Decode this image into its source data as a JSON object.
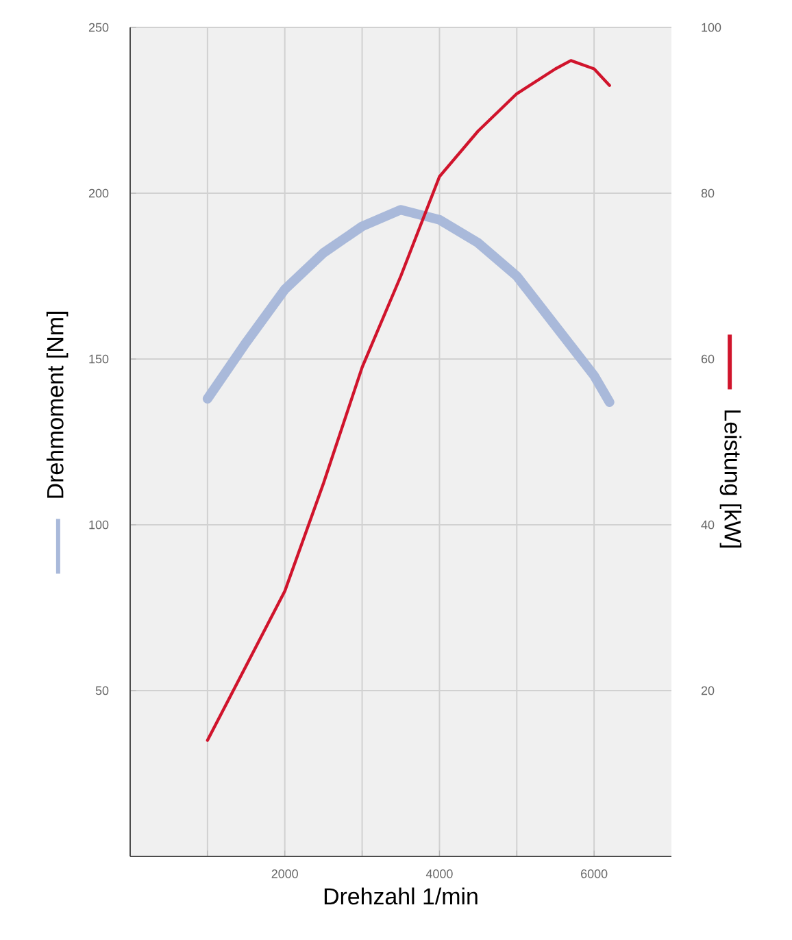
{
  "chart_data": {
    "type": "line",
    "xlabel": "Drehzahl 1/min",
    "ylabel": "Drehmoment [Nm]",
    "y2label": "Leistung [kW]",
    "xlim": [
      0,
      7000
    ],
    "ylim": [
      0,
      250
    ],
    "y2lim": [
      0,
      100
    ],
    "xticks": [
      {
        "value": 1000,
        "label": null
      },
      2000,
      {
        "value": 3000,
        "label": null
      },
      4000,
      {
        "value": 5000,
        "label": null
      },
      6000
    ],
    "yticks": [
      50,
      100,
      150,
      200,
      250
    ],
    "y2ticks": [
      20,
      40,
      60,
      80,
      100
    ],
    "grid": true,
    "series": [
      {
        "color": "#a9b9da",
        "x": [
          1000,
          1500,
          2000,
          2500,
          3000,
          3500,
          4000,
          4500,
          5000,
          5500,
          6000,
          6200
        ],
        "values": [
          138,
          155,
          171,
          182,
          190,
          195,
          192,
          185,
          175,
          160,
          145,
          137
        ]
      },
      {
        "color": "#d0142c",
        "axis": "y2",
        "x": [
          1000,
          1500,
          2000,
          2500,
          3000,
          3500,
          4000,
          4500,
          5000,
          5500,
          5700,
          6000,
          6200
        ],
        "values": [
          14,
          23,
          32,
          45,
          59,
          70,
          82,
          87.5,
          92,
          95,
          96,
          95,
          93
        ]
      }
    ]
  }
}
